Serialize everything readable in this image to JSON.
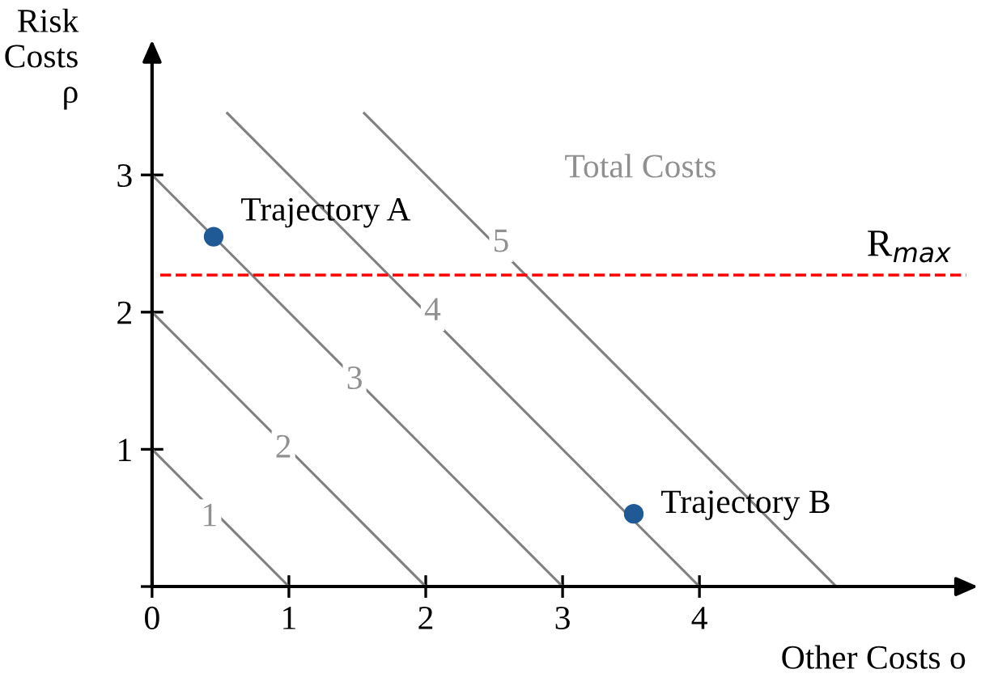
{
  "chart_data": {
    "type": "line",
    "xlabel": "Other Costs o",
    "ylabel": "Risk\nCosts\nρ",
    "xlim": [
      0,
      5.95
    ],
    "ylim": [
      0,
      3.9
    ],
    "xticks": [
      0,
      1,
      2,
      3,
      4
    ],
    "yticks": [
      {
        "value": 0,
        "label": null
      },
      1,
      2,
      3
    ],
    "grid": false,
    "legend": false,
    "series": [
      {
        "color": "#808080",
        "x": [
          0,
          1
        ],
        "values": [
          1,
          0
        ]
      },
      {
        "color": "#808080",
        "x": [
          0,
          2
        ],
        "values": [
          2,
          0
        ]
      },
      {
        "color": "#808080",
        "x": [
          0,
          3
        ],
        "values": [
          3,
          0
        ]
      },
      {
        "color": "#808080",
        "x": [
          0.55,
          4
        ],
        "values": [
          3.45,
          0
        ]
      },
      {
        "color": "#808080",
        "x": [
          1.55,
          5
        ],
        "values": [
          3.45,
          0
        ]
      },
      {
        "type": "scatter",
        "name": "Trajectory A",
        "color": "#1f5a96",
        "x": [
          0.45
        ],
        "values": [
          2.55
        ]
      },
      {
        "type": "scatter",
        "name": "Trajectory B",
        "color": "#1f5a96",
        "x": [
          3.52
        ],
        "values": [
          0.53
        ]
      }
    ],
    "ref_lines": [
      {
        "axis": "y",
        "value": 2.27,
        "label": "R$_{max}$",
        "color": "#ff0000",
        "line_style": "dashed"
      }
    ],
    "annotations": [
      {
        "text": "1",
        "x": 0.42,
        "y": 0.5
      },
      {
        "text": "2",
        "x": 0.96,
        "y": 1.0
      },
      {
        "text": "3",
        "x": 1.48,
        "y": 1.5
      },
      {
        "text": "4",
        "x": 2.05,
        "y": 2.0
      },
      {
        "text": "5",
        "x": 2.55,
        "y": 2.5
      },
      "Total Costs"
    ]
  }
}
